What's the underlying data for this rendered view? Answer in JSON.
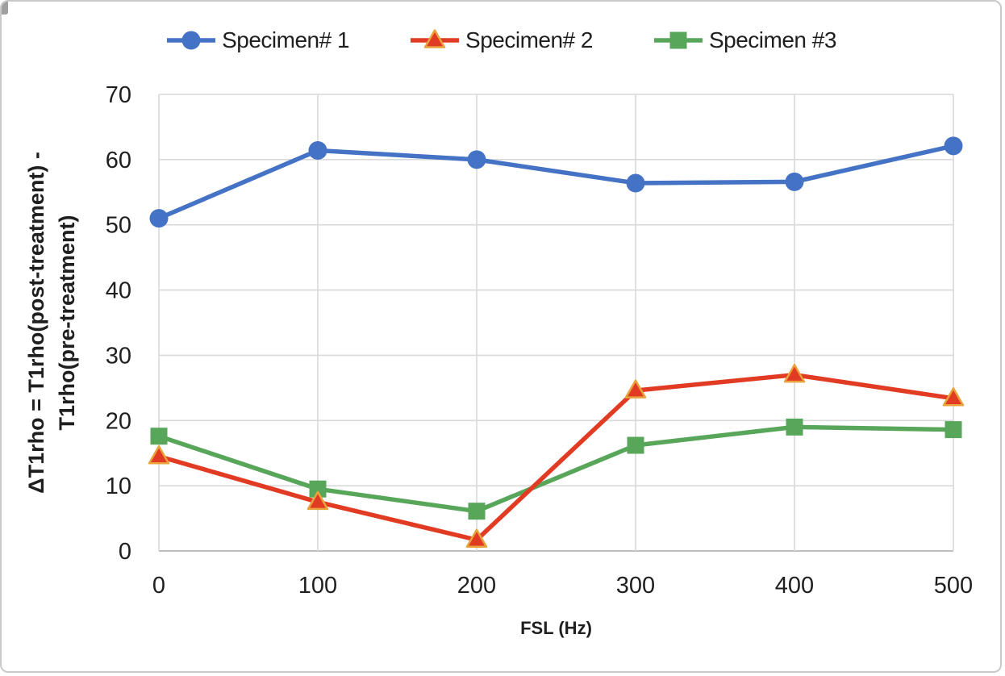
{
  "figure": {
    "kind": "line-chart-screenshot",
    "border_color": "#c9c9c9"
  },
  "colors": {
    "series1": "#4472C4",
    "series2": "#E23B23",
    "series2_marker_stroke": "#E8A33D",
    "series3": "#57A65A",
    "gridline": "#D9D9D9",
    "axis_line": "#BFBFBF",
    "text": "#1F1F1F"
  },
  "chart_data": {
    "type": "line",
    "title": "",
    "xlabel": "FSL (Hz)",
    "ylabel": "ΔT1rho = T1rho(post-treatment) - T1rho(pre-treatment)",
    "ylabel_lines": [
      "ΔT1rho = T1rho(post-treatment) -",
      "T1rho(pre-treatment)"
    ],
    "x": [
      0,
      100,
      200,
      300,
      400,
      500
    ],
    "xtick_labels": [
      "0",
      "100",
      "200",
      "300",
      "400",
      "500"
    ],
    "ytick_labels": [
      "0",
      "10",
      "20",
      "30",
      "40",
      "50",
      "60",
      "70"
    ],
    "ylim": [
      0,
      70
    ],
    "xlim": [
      0,
      500
    ],
    "ytick_step": 10,
    "grid": true,
    "legend_position": "top",
    "series": [
      {
        "name": "Specimen# 1",
        "marker": "circle",
        "color": "#4472C4",
        "values": [
          51,
          61.4,
          60,
          56.4,
          56.6,
          62.1
        ]
      },
      {
        "name": "Specimen# 2",
        "marker": "triangle",
        "color": "#E23B23",
        "marker_stroke": "#E8A33D",
        "values": [
          14.5,
          7.5,
          1.7,
          24.6,
          27,
          23.4
        ]
      },
      {
        "name": "Specimen #3",
        "marker": "square",
        "color": "#57A65A",
        "values": [
          17.6,
          9.5,
          6.1,
          16.2,
          19,
          18.6
        ]
      }
    ]
  }
}
